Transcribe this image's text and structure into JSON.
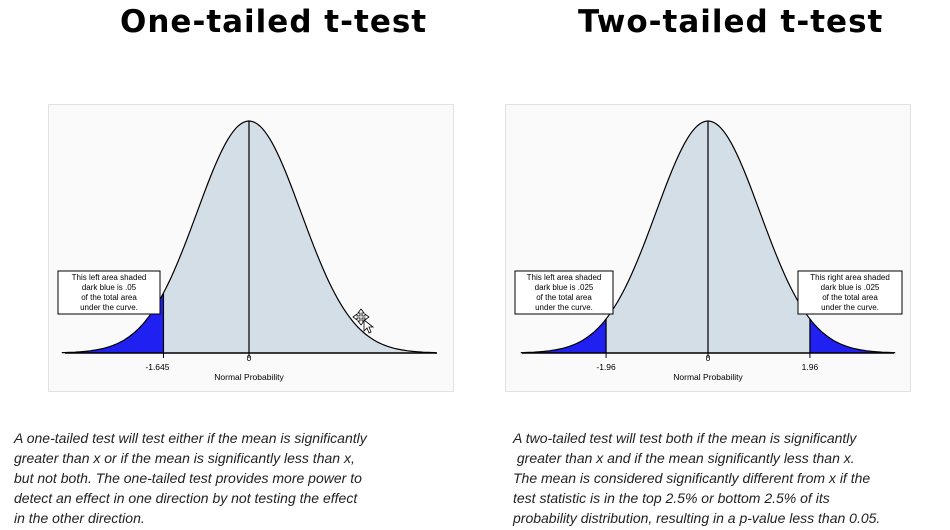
{
  "left": {
    "title": "One-tailed t-test",
    "callout": [
      "This left area shaded",
      "dark blue is .05",
      "of the total area",
      "under the curve."
    ],
    "tick_labels": [
      "-1.645",
      "0"
    ],
    "axis_label": "Normal Probability",
    "description": [
      "A one-tailed test will test either if the mean is significantly",
      "greater than x or if the mean is significantly less than x,",
      "but not both. The one-tailed test provides more power to",
      "detect an effect in one direction by not testing the effect",
      "in the other direction."
    ]
  },
  "right": {
    "title": "Two-tailed t-test",
    "callout_left": [
      "This left area shaded",
      "dark blue is .025",
      "of the total area",
      "under the curve."
    ],
    "callout_right": [
      "This right area shaded",
      "dark blue is .025",
      "of the total area",
      "under the curve."
    ],
    "tick_labels": [
      "-1.96",
      "0",
      "1.96"
    ],
    "axis_label": "Normal Probability",
    "description": [
      "A two-tailed test will test both if the mean is significantly",
      " greater than x and if the mean significantly less than x.",
      "The mean is considered significantly different from x if the",
      "test statistic is in the top 2.5% or bottom 2.5% of its",
      "probability distribution, resulting in a p-value less than 0.05."
    ]
  },
  "colors": {
    "curve_fill": "#d4dee6",
    "tail_fill": "#2020f0",
    "line": "#000000"
  }
}
